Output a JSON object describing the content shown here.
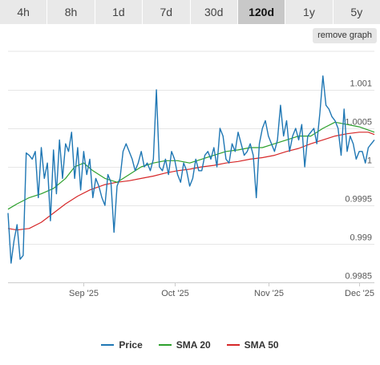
{
  "tabs": [
    {
      "label": "4h",
      "active": false
    },
    {
      "label": "8h",
      "active": false
    },
    {
      "label": "1d",
      "active": false
    },
    {
      "label": "7d",
      "active": false
    },
    {
      "label": "30d",
      "active": false
    },
    {
      "label": "120d",
      "active": true
    },
    {
      "label": "1y",
      "active": false
    },
    {
      "label": "5y",
      "active": false
    }
  ],
  "remove_graph_label": "remove graph",
  "chart_data": {
    "type": "line",
    "ylim": [
      0.9985,
      1.0015
    ],
    "xlim": [
      "2025-08-07",
      "2025-12-06"
    ],
    "y_ticks": [
      {
        "value": 0.9985,
        "label": "0.9985"
      },
      {
        "value": 0.999,
        "label": "0.999"
      },
      {
        "value": 0.9995,
        "label": "0.9995"
      },
      {
        "value": 1.0,
        "label": "1"
      },
      {
        "value": 1.0005,
        "label": "1.0005"
      },
      {
        "value": 1.001,
        "label": "1.001"
      }
    ],
    "x_ticks": [
      {
        "date": "2025-09-01",
        "label": "Sep '25"
      },
      {
        "date": "2025-10-01",
        "label": "Oct '25"
      },
      {
        "date": "2025-11-01",
        "label": "Nov '25"
      },
      {
        "date": "2025-12-01",
        "label": "Dec '25"
      }
    ],
    "grid": true,
    "legend_position": "bottom-center",
    "series": [
      {
        "name": "Price",
        "color": "#1f77b4",
        "points": [
          [
            "2025-08-07",
            0.9994
          ],
          [
            "2025-08-08",
            0.99875
          ],
          [
            "2025-08-09",
            0.99905
          ],
          [
            "2025-08-10",
            0.99925
          ],
          [
            "2025-08-11",
            0.9988
          ],
          [
            "2025-08-12",
            0.99885
          ],
          [
            "2025-08-13",
            1.00018
          ],
          [
            "2025-08-14",
            1.00015
          ],
          [
            "2025-08-15",
            1.0001
          ],
          [
            "2025-08-16",
            1.0002
          ],
          [
            "2025-08-17",
            0.9996
          ],
          [
            "2025-08-18",
            1.00025
          ],
          [
            "2025-08-19",
            0.99985
          ],
          [
            "2025-08-20",
            1.00005
          ],
          [
            "2025-08-21",
            0.9993
          ],
          [
            "2025-08-22",
            1.00022
          ],
          [
            "2025-08-23",
            0.99965
          ],
          [
            "2025-08-24",
            1.00035
          ],
          [
            "2025-08-25",
            0.99985
          ],
          [
            "2025-08-26",
            1.0003
          ],
          [
            "2025-08-27",
            1.0002
          ],
          [
            "2025-08-28",
            1.00045
          ],
          [
            "2025-08-29",
            0.99985
          ],
          [
            "2025-08-30",
            1.00025
          ],
          [
            "2025-08-31",
            0.9997
          ],
          [
            "2025-09-01",
            1.0002
          ],
          [
            "2025-09-02",
            0.9999
          ],
          [
            "2025-09-03",
            1.0001
          ],
          [
            "2025-09-04",
            0.9996
          ],
          [
            "2025-09-05",
            0.99985
          ],
          [
            "2025-09-06",
            0.99975
          ],
          [
            "2025-09-07",
            0.9996
          ],
          [
            "2025-09-08",
            0.9995
          ],
          [
            "2025-09-09",
            0.9999
          ],
          [
            "2025-09-10",
            0.9998
          ],
          [
            "2025-09-11",
            0.99915
          ],
          [
            "2025-09-12",
            0.99975
          ],
          [
            "2025-09-13",
            0.99985
          ],
          [
            "2025-09-14",
            1.0002
          ],
          [
            "2025-09-15",
            1.0003
          ],
          [
            "2025-09-16",
            1.0002
          ],
          [
            "2025-09-17",
            1.0001
          ],
          [
            "2025-09-18",
            0.99995
          ],
          [
            "2025-09-19",
            1.00005
          ],
          [
            "2025-09-20",
            1.0002
          ],
          [
            "2025-09-21",
            1.0
          ],
          [
            "2025-09-22",
            1.00005
          ],
          [
            "2025-09-23",
            0.99995
          ],
          [
            "2025-09-24",
            1.0001
          ],
          [
            "2025-09-25",
            1.001
          ],
          [
            "2025-09-26",
            1.0
          ],
          [
            "2025-09-27",
            0.99995
          ],
          [
            "2025-09-28",
            1.0001
          ],
          [
            "2025-09-29",
            0.9999
          ],
          [
            "2025-09-30",
            1.0002
          ],
          [
            "2025-10-01",
            1.0001
          ],
          [
            "2025-10-02",
            0.9999
          ],
          [
            "2025-10-03",
            0.9998
          ],
          [
            "2025-10-04",
            1.00005
          ],
          [
            "2025-10-05",
            0.99995
          ],
          [
            "2025-10-06",
            0.99975
          ],
          [
            "2025-10-07",
            0.99985
          ],
          [
            "2025-10-08",
            1.0001
          ],
          [
            "2025-10-09",
            0.99995
          ],
          [
            "2025-10-10",
            0.99995
          ],
          [
            "2025-10-11",
            1.00015
          ],
          [
            "2025-10-12",
            1.0002
          ],
          [
            "2025-10-13",
            1.0001
          ],
          [
            "2025-10-14",
            1.00025
          ],
          [
            "2025-10-15",
            1.0
          ],
          [
            "2025-10-16",
            1.0005
          ],
          [
            "2025-10-17",
            1.0004
          ],
          [
            "2025-10-18",
            1.0001
          ],
          [
            "2025-10-19",
            1.00005
          ],
          [
            "2025-10-20",
            1.0003
          ],
          [
            "2025-10-21",
            1.0002
          ],
          [
            "2025-10-22",
            1.00045
          ],
          [
            "2025-10-23",
            1.0003
          ],
          [
            "2025-10-24",
            1.00015
          ],
          [
            "2025-10-25",
            1.0002
          ],
          [
            "2025-10-26",
            1.0003
          ],
          [
            "2025-10-27",
            1.00015
          ],
          [
            "2025-10-28",
            0.9996
          ],
          [
            "2025-10-29",
            1.0003
          ],
          [
            "2025-10-30",
            1.0005
          ],
          [
            "2025-10-31",
            1.0006
          ],
          [
            "2025-11-01",
            1.0004
          ],
          [
            "2025-11-02",
            1.0003
          ],
          [
            "2025-11-03",
            1.0002
          ],
          [
            "2025-11-04",
            1.00035
          ],
          [
            "2025-11-05",
            1.0008
          ],
          [
            "2025-11-06",
            1.0004
          ],
          [
            "2025-11-07",
            1.0006
          ],
          [
            "2025-11-08",
            1.0002
          ],
          [
            "2025-11-09",
            1.0004
          ],
          [
            "2025-11-10",
            1.0005
          ],
          [
            "2025-11-11",
            1.00035
          ],
          [
            "2025-11-12",
            1.00055
          ],
          [
            "2025-11-13",
            1.0
          ],
          [
            "2025-11-14",
            1.0004
          ],
          [
            "2025-11-15",
            1.00045
          ],
          [
            "2025-11-16",
            1.0005
          ],
          [
            "2025-11-17",
            1.0003
          ],
          [
            "2025-11-18",
            1.0007
          ],
          [
            "2025-11-19",
            1.00118
          ],
          [
            "2025-11-20",
            1.0008
          ],
          [
            "2025-11-21",
            1.00075
          ],
          [
            "2025-11-22",
            1.00065
          ],
          [
            "2025-11-23",
            1.0006
          ],
          [
            "2025-11-24",
            1.0005
          ],
          [
            "2025-11-25",
            1.00015
          ],
          [
            "2025-11-26",
            1.00075
          ],
          [
            "2025-11-27",
            1.0002
          ],
          [
            "2025-11-28",
            1.0004
          ],
          [
            "2025-11-29",
            1.0003
          ],
          [
            "2025-11-30",
            1.0001
          ],
          [
            "2025-12-01",
            1.0002
          ],
          [
            "2025-12-02",
            1.0002
          ],
          [
            "2025-12-03",
            1.00005
          ],
          [
            "2025-12-04",
            1.00025
          ],
          [
            "2025-12-05",
            1.0003
          ],
          [
            "2025-12-06",
            1.00035
          ]
        ]
      },
      {
        "name": "SMA 20",
        "color": "#2ca02c",
        "points": [
          [
            "2025-08-07",
            0.99945
          ],
          [
            "2025-08-10",
            0.99952
          ],
          [
            "2025-08-14",
            0.9996
          ],
          [
            "2025-08-18",
            0.99965
          ],
          [
            "2025-08-22",
            0.99972
          ],
          [
            "2025-08-26",
            0.99985
          ],
          [
            "2025-08-29",
            1.0
          ],
          [
            "2025-09-01",
            1.00005
          ],
          [
            "2025-09-04",
            0.99995
          ],
          [
            "2025-09-08",
            0.99985
          ],
          [
            "2025-09-12",
            0.9998
          ],
          [
            "2025-09-16",
            0.9999
          ],
          [
            "2025-09-20",
            1.0
          ],
          [
            "2025-09-24",
            1.00005
          ],
          [
            "2025-09-28",
            1.00008
          ],
          [
            "2025-10-02",
            1.00008
          ],
          [
            "2025-10-06",
            1.00005
          ],
          [
            "2025-10-10",
            1.0001
          ],
          [
            "2025-10-14",
            1.00015
          ],
          [
            "2025-10-18",
            1.0002
          ],
          [
            "2025-10-22",
            1.00022
          ],
          [
            "2025-10-26",
            1.00025
          ],
          [
            "2025-10-30",
            1.00025
          ],
          [
            "2025-11-03",
            1.0003
          ],
          [
            "2025-11-07",
            1.00035
          ],
          [
            "2025-11-11",
            1.0004
          ],
          [
            "2025-11-15",
            1.0004
          ],
          [
            "2025-11-19",
            1.0005
          ],
          [
            "2025-11-23",
            1.00058
          ],
          [
            "2025-11-27",
            1.00055
          ],
          [
            "2025-12-01",
            1.00052
          ],
          [
            "2025-12-06",
            1.00045
          ]
        ]
      },
      {
        "name": "SMA 50",
        "color": "#d62728",
        "points": [
          [
            "2025-08-07",
            0.9992
          ],
          [
            "2025-08-10",
            0.99918
          ],
          [
            "2025-08-14",
            0.9992
          ],
          [
            "2025-08-18",
            0.99928
          ],
          [
            "2025-08-22",
            0.9994
          ],
          [
            "2025-08-26",
            0.99952
          ],
          [
            "2025-08-30",
            0.99962
          ],
          [
            "2025-09-03",
            0.9997
          ],
          [
            "2025-09-08",
            0.99977
          ],
          [
            "2025-09-12",
            0.9998
          ],
          [
            "2025-09-16",
            0.99982
          ],
          [
            "2025-09-20",
            0.99985
          ],
          [
            "2025-09-24",
            0.99988
          ],
          [
            "2025-09-28",
            0.99992
          ],
          [
            "2025-10-02",
            0.99995
          ],
          [
            "2025-10-06",
            0.99997
          ],
          [
            "2025-10-10",
            1.0
          ],
          [
            "2025-10-14",
            1.00002
          ],
          [
            "2025-10-18",
            1.00005
          ],
          [
            "2025-10-22",
            1.00007
          ],
          [
            "2025-10-26",
            1.0001
          ],
          [
            "2025-10-30",
            1.00012
          ],
          [
            "2025-11-03",
            1.00015
          ],
          [
            "2025-11-07",
            1.0002
          ],
          [
            "2025-11-11",
            1.00024
          ],
          [
            "2025-11-15",
            1.0003
          ],
          [
            "2025-11-19",
            1.00035
          ],
          [
            "2025-11-23",
            1.0004
          ],
          [
            "2025-11-27",
            1.00043
          ],
          [
            "2025-12-01",
            1.00045
          ],
          [
            "2025-12-04",
            1.00045
          ],
          [
            "2025-12-06",
            1.00042
          ]
        ]
      }
    ]
  }
}
